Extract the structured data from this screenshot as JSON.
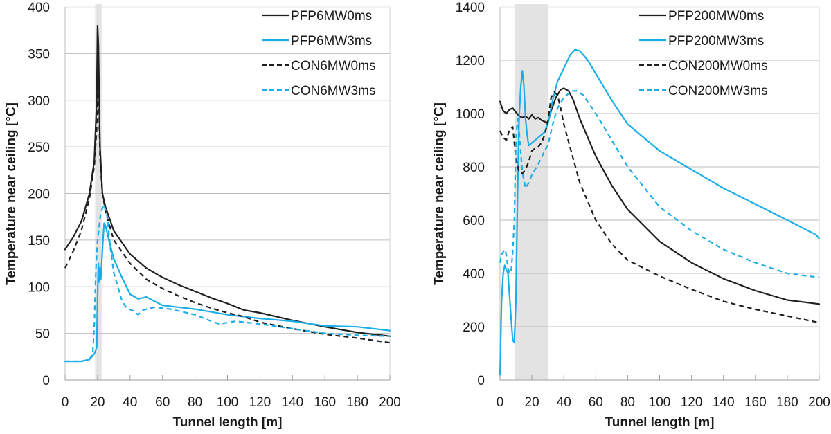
{
  "chart_data": [
    {
      "type": "line",
      "title": "",
      "xlabel": "Tunnel length [m]",
      "ylabel": "Temperature near ceiling [°C]",
      "xlim": [
        0,
        200
      ],
      "ylim": [
        0,
        400
      ],
      "xticks": [
        0,
        20,
        40,
        60,
        80,
        100,
        120,
        140,
        160,
        180,
        200
      ],
      "yticks": [
        0,
        50,
        100,
        150,
        200,
        250,
        300,
        350,
        400
      ],
      "grid": "horizontal",
      "legend_position": "top-right",
      "shaded_region": [
        18.5,
        22.5
      ],
      "series": [
        {
          "name": "PFP6MW0ms",
          "color": "#1f1f1f",
          "dash": "solid",
          "x": [
            0,
            5,
            10,
            15,
            18,
            19.5,
            20,
            20.5,
            21.5,
            23,
            25,
            30,
            40,
            50,
            60,
            70,
            80,
            90,
            100,
            110,
            120,
            140,
            160,
            180,
            200
          ],
          "y": [
            140,
            153,
            170,
            200,
            235,
            300,
            380,
            360,
            250,
            200,
            185,
            160,
            135,
            120,
            110,
            102,
            95,
            88,
            82,
            75,
            72,
            64,
            57,
            51,
            47
          ]
        },
        {
          "name": "PFP6MW3ms",
          "color": "#1aaee8",
          "dash": "solid",
          "x": [
            0,
            10,
            15,
            18,
            19.5,
            20,
            20.5,
            21,
            21.5,
            22,
            23,
            24,
            25,
            27,
            30,
            35,
            40,
            45,
            50,
            60,
            80,
            100,
            120,
            140,
            160,
            180,
            200
          ],
          "y": [
            20,
            20,
            22,
            28,
            35,
            90,
            125,
            105,
            120,
            108,
            140,
            168,
            165,
            150,
            130,
            110,
            92,
            87,
            89,
            80,
            76,
            70,
            66,
            63,
            58,
            57,
            53
          ]
        },
        {
          "name": "CON6MW0ms",
          "color": "#1f1f1f",
          "dash": "dashed",
          "x": [
            0,
            5,
            10,
            15,
            18,
            19.5,
            20,
            20.5,
            21.5,
            23,
            25,
            30,
            40,
            50,
            60,
            70,
            80,
            90,
            100,
            110,
            120,
            140,
            160,
            180,
            200
          ],
          "y": [
            120,
            138,
            160,
            195,
            230,
            270,
            345,
            330,
            240,
            200,
            180,
            150,
            125,
            108,
            98,
            90,
            83,
            77,
            72,
            68,
            62,
            55,
            49,
            45,
            40
          ]
        },
        {
          "name": "CON6MW3ms",
          "color": "#1aaee8",
          "dash": "dashed",
          "x": [
            0,
            10,
            15,
            17,
            18,
            19,
            20,
            22,
            24,
            26,
            28,
            30,
            35,
            38,
            42,
            45,
            48,
            55,
            65,
            80,
            90,
            95,
            105,
            120,
            140,
            160,
            180,
            200
          ],
          "y": [
            20,
            20,
            22,
            28,
            60,
            120,
            150,
            180,
            188,
            175,
            140,
            115,
            85,
            77,
            74,
            70,
            75,
            78,
            76,
            70,
            63,
            60,
            63,
            60,
            55,
            50,
            48,
            47
          ]
        }
      ]
    },
    {
      "type": "line",
      "title": "",
      "xlabel": "Tunnel length [m]",
      "ylabel": "Temperature near ceiling  [°C]",
      "xlim": [
        0,
        200
      ],
      "ylim": [
        0,
        1400
      ],
      "xticks": [
        0,
        20,
        40,
        60,
        80,
        100,
        120,
        140,
        160,
        180,
        200
      ],
      "yticks": [
        0,
        200,
        400,
        600,
        800,
        1000,
        1200,
        1400
      ],
      "grid": "horizontal",
      "legend_position": "top-right",
      "shaded_region": [
        9.5,
        30
      ],
      "series": [
        {
          "name": "PFP200MW0ms",
          "color": "#1f1f1f",
          "dash": "solid",
          "x": [
            0,
            2,
            4,
            6,
            8,
            10,
            12,
            14,
            16,
            18,
            20,
            22,
            24,
            26,
            28,
            30,
            32,
            35,
            38,
            40,
            43,
            46,
            50,
            60,
            70,
            80,
            100,
            120,
            140,
            160,
            180,
            200
          ],
          "y": [
            1045,
            1010,
            1000,
            1015,
            1020,
            1005,
            990,
            985,
            990,
            980,
            995,
            980,
            985,
            975,
            970,
            965,
            1010,
            1060,
            1090,
            1095,
            1085,
            1050,
            980,
            840,
            730,
            640,
            520,
            440,
            380,
            335,
            300,
            285
          ]
        },
        {
          "name": "PFP200MW3ms",
          "color": "#1aaee8",
          "dash": "solid",
          "x": [
            0,
            1,
            2,
            3,
            5,
            7,
            8,
            9,
            10,
            11,
            12,
            13,
            14,
            15,
            16,
            17,
            18,
            20,
            22,
            25,
            28,
            30,
            33,
            36,
            40,
            44,
            47,
            50,
            55,
            60,
            70,
            80,
            100,
            120,
            140,
            160,
            180,
            198,
            200
          ],
          "y": [
            20,
            300,
            400,
            430,
            400,
            230,
            150,
            140,
            300,
            700,
            990,
            1100,
            1160,
            1100,
            980,
            920,
            880,
            890,
            900,
            915,
            930,
            960,
            1050,
            1120,
            1170,
            1220,
            1240,
            1235,
            1200,
            1150,
            1050,
            960,
            860,
            790,
            720,
            660,
            600,
            545,
            530
          ]
        },
        {
          "name": "CON200MW0ms",
          "color": "#1f1f1f",
          "dash": "dashed",
          "x": [
            0,
            2,
            4,
            6,
            8,
            10,
            12,
            14,
            16,
            18,
            20,
            22,
            24,
            26,
            28,
            30,
            32,
            34,
            36,
            38,
            40,
            45,
            50,
            60,
            70,
            80,
            100,
            120,
            140,
            160,
            180,
            200
          ],
          "y": [
            935,
            910,
            900,
            940,
            950,
            830,
            780,
            775,
            790,
            820,
            860,
            870,
            875,
            890,
            920,
            970,
            1060,
            1080,
            1070,
            1020,
            960,
            850,
            740,
            600,
            510,
            450,
            390,
            340,
            295,
            265,
            240,
            215
          ]
        },
        {
          "name": "CON200MW3ms",
          "color": "#1aaee8",
          "dash": "dashed",
          "x": [
            0,
            1,
            2,
            3,
            4,
            5,
            6,
            7,
            8,
            9,
            10,
            11,
            12,
            14,
            16,
            18,
            20,
            24,
            28,
            30,
            33,
            36,
            40,
            45,
            48,
            52,
            60,
            70,
            80,
            100,
            120,
            140,
            160,
            180,
            200
          ],
          "y": [
            440,
            470,
            480,
            490,
            470,
            420,
            400,
            410,
            480,
            600,
            900,
            980,
            930,
            780,
            720,
            740,
            770,
            810,
            860,
            880,
            960,
            1020,
            1060,
            1085,
            1085,
            1070,
            1000,
            900,
            800,
            650,
            560,
            490,
            440,
            400,
            385
          ]
        }
      ]
    }
  ]
}
